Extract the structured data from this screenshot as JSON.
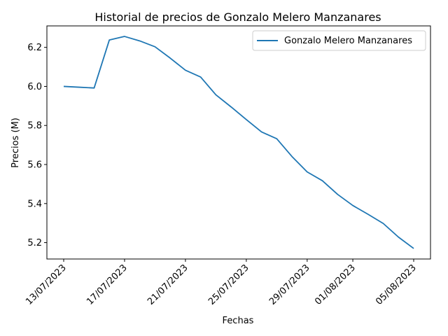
{
  "chart_data": {
    "type": "line",
    "title": "Historial de precios de Gonzalo Melero Manzanares",
    "xlabel": "Fechas",
    "ylabel": "Precios (M)",
    "x": [
      "13/07/2023",
      "14/07/2023",
      "15/07/2023",
      "16/07/2023",
      "17/07/2023",
      "18/07/2023",
      "19/07/2023",
      "20/07/2023",
      "21/07/2023",
      "22/07/2023",
      "23/07/2023",
      "24/07/2023",
      "25/07/2023",
      "26/07/2023",
      "27/07/2023",
      "28/07/2023",
      "29/07/2023",
      "30/07/2023",
      "31/07/2023",
      "01/08/2023",
      "02/08/2023",
      "03/08/2023",
      "04/08/2023",
      "05/08/2023"
    ],
    "series": [
      {
        "name": "Gonzalo Melero Manzanares",
        "color": "#1f77b4",
        "values": [
          6.0,
          5.996,
          5.992,
          6.238,
          6.256,
          6.233,
          6.203,
          6.145,
          6.083,
          6.048,
          5.957,
          5.895,
          5.83,
          5.767,
          5.732,
          5.641,
          5.562,
          5.517,
          5.447,
          5.39,
          5.345,
          5.298,
          5.228,
          5.17
        ]
      }
    ],
    "x_tick_labels": [
      "13/07/2023",
      "17/07/2023",
      "21/07/2023",
      "25/07/2023",
      "29/07/2023",
      "01/08/2023",
      "05/08/2023"
    ],
    "y_ticks": [
      5.2,
      5.4,
      5.6,
      5.8,
      6.0,
      6.2
    ],
    "y_tick_labels": [
      "5.2",
      "5.4",
      "5.6",
      "5.8",
      "6.0",
      "6.2"
    ],
    "ylim": [
      5.116,
      6.31
    ],
    "grid": false,
    "legend_position": "top-right"
  }
}
